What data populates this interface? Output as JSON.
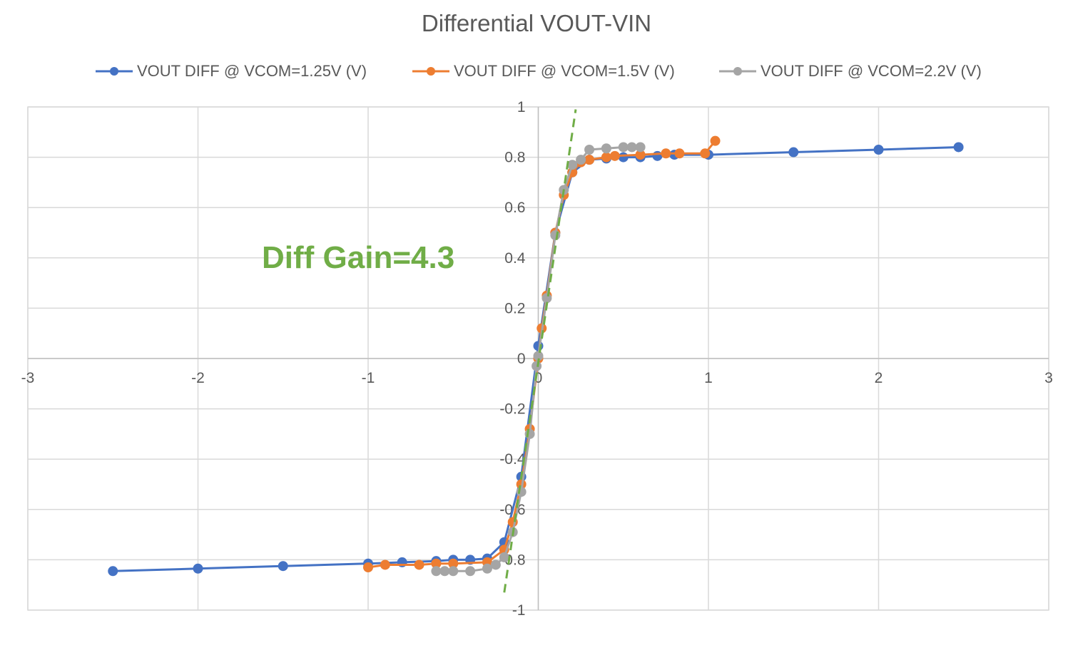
{
  "chart_data": {
    "type": "scatter",
    "title": "Differential VOUT-VIN",
    "xlabel": "",
    "ylabel": "",
    "xlim": [
      -3,
      3
    ],
    "ylim": [
      -1,
      1
    ],
    "x_ticks": [
      "-3",
      "-2",
      "-1",
      "0",
      "1",
      "2",
      "3"
    ],
    "y_ticks": [
      "1",
      "0.8",
      "0.6",
      "0.4",
      "0.2",
      "0",
      "-0.2",
      "-0.4",
      "-0.6",
      "-0.8",
      "-1"
    ],
    "grid": true,
    "legend_position": "top",
    "annotation": "Diff Gain=4.3",
    "annotation_color": "#70AD47",
    "fit_line": {
      "color": "#70AD47",
      "style": "dashed",
      "points": [
        [
          -0.2,
          -0.93
        ],
        [
          0.22,
          0.99
        ]
      ]
    },
    "series": [
      {
        "name": "VOUT DIFF @ VCOM=1.25V (V)",
        "color": "#4472C4",
        "points": [
          [
            -2.5,
            -0.845
          ],
          [
            -2.0,
            -0.835
          ],
          [
            -1.5,
            -0.825
          ],
          [
            -1.0,
            -0.815
          ],
          [
            -0.8,
            -0.81
          ],
          [
            -0.6,
            -0.805
          ],
          [
            -0.5,
            -0.8
          ],
          [
            -0.4,
            -0.8
          ],
          [
            -0.3,
            -0.795
          ],
          [
            -0.2,
            -0.73
          ],
          [
            -0.1,
            -0.47
          ],
          [
            0.0,
            0.05
          ],
          [
            0.1,
            0.5
          ],
          [
            0.2,
            0.74
          ],
          [
            0.3,
            0.79
          ],
          [
            0.4,
            0.795
          ],
          [
            0.5,
            0.8
          ],
          [
            0.6,
            0.8
          ],
          [
            0.7,
            0.805
          ],
          [
            0.8,
            0.81
          ],
          [
            1.0,
            0.81
          ],
          [
            1.5,
            0.82
          ],
          [
            2.0,
            0.83
          ],
          [
            2.47,
            0.84
          ]
        ]
      },
      {
        "name": "VOUT DIFF @ VCOM=1.5V (V)",
        "color": "#ED7D31",
        "points": [
          [
            -1.0,
            -0.83
          ],
          [
            -0.9,
            -0.82
          ],
          [
            -0.7,
            -0.82
          ],
          [
            -0.6,
            -0.815
          ],
          [
            -0.5,
            -0.815
          ],
          [
            -0.3,
            -0.81
          ],
          [
            -0.2,
            -0.76
          ],
          [
            -0.15,
            -0.65
          ],
          [
            -0.1,
            -0.5
          ],
          [
            -0.05,
            -0.28
          ],
          [
            0.0,
            0.0
          ],
          [
            0.02,
            0.12
          ],
          [
            0.05,
            0.25
          ],
          [
            0.1,
            0.5
          ],
          [
            0.15,
            0.65
          ],
          [
            0.2,
            0.74
          ],
          [
            0.25,
            0.78
          ],
          [
            0.3,
            0.79
          ],
          [
            0.4,
            0.8
          ],
          [
            0.45,
            0.805
          ],
          [
            0.6,
            0.81
          ],
          [
            0.75,
            0.815
          ],
          [
            0.83,
            0.815
          ],
          [
            0.98,
            0.815
          ],
          [
            1.04,
            0.865
          ]
        ]
      },
      {
        "name": "VOUT DIFF @ VCOM=2.2V (V)",
        "color": "#A5A5A5",
        "points": [
          [
            -0.6,
            -0.845
          ],
          [
            -0.55,
            -0.845
          ],
          [
            -0.5,
            -0.845
          ],
          [
            -0.4,
            -0.845
          ],
          [
            -0.3,
            -0.835
          ],
          [
            -0.25,
            -0.82
          ],
          [
            -0.2,
            -0.79
          ],
          [
            -0.15,
            -0.69
          ],
          [
            -0.1,
            -0.53
          ],
          [
            -0.05,
            -0.3
          ],
          [
            -0.01,
            -0.03
          ],
          [
            0.0,
            0.01
          ],
          [
            0.05,
            0.24
          ],
          [
            0.1,
            0.49
          ],
          [
            0.15,
            0.67
          ],
          [
            0.2,
            0.77
          ],
          [
            0.25,
            0.79
          ],
          [
            0.3,
            0.83
          ],
          [
            0.4,
            0.835
          ],
          [
            0.5,
            0.84
          ],
          [
            0.55,
            0.84
          ],
          [
            0.6,
            0.84
          ]
        ]
      }
    ]
  }
}
